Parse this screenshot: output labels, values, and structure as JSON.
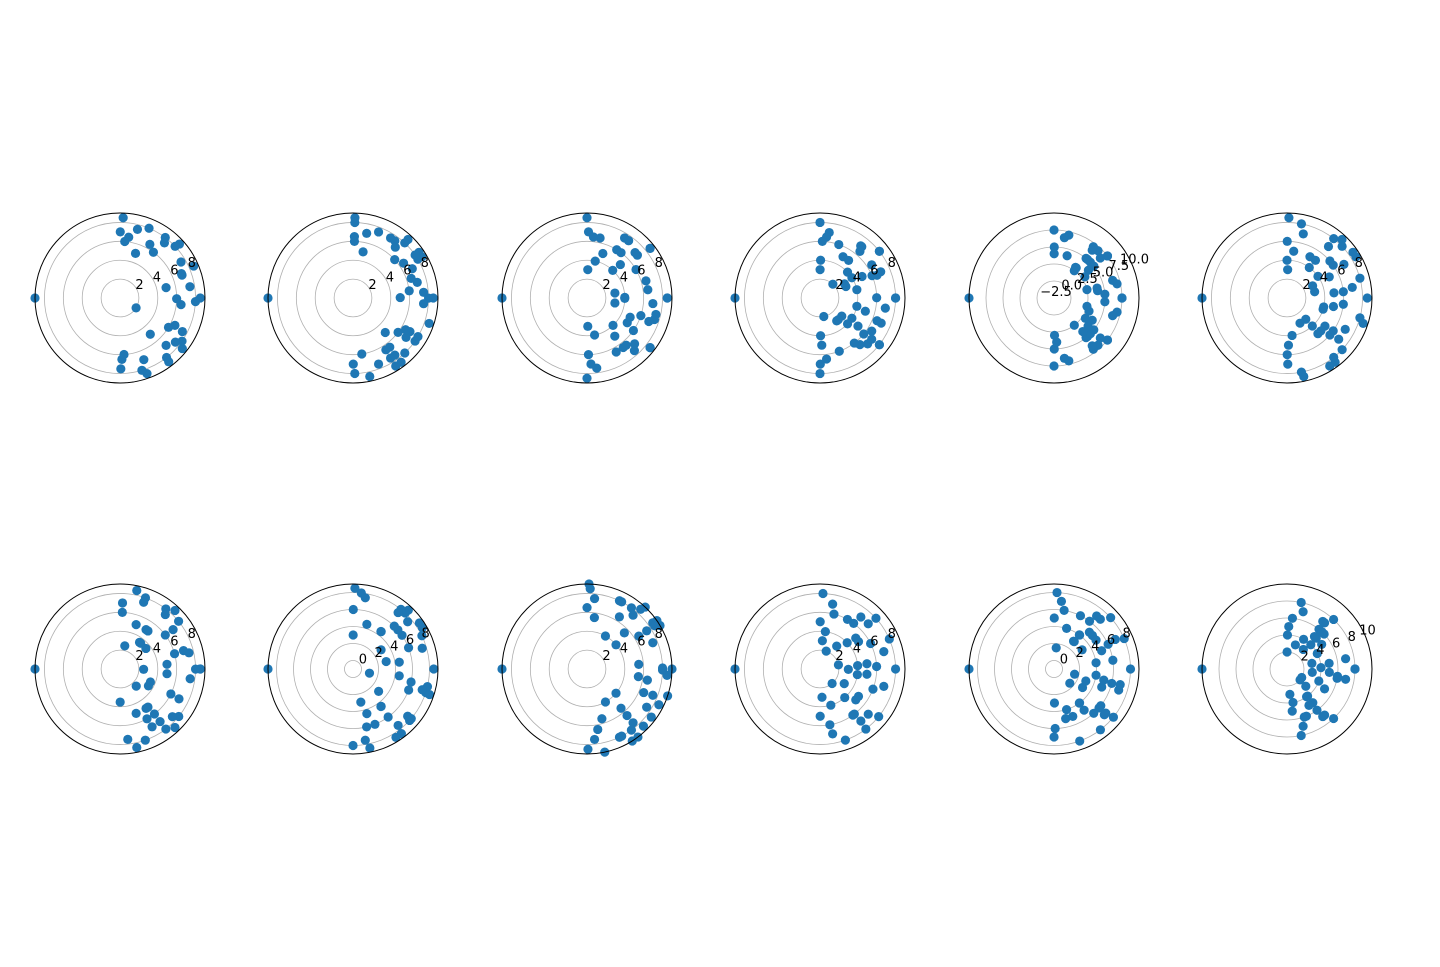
{
  "chart_data": [
    {
      "type": "scatter",
      "projection": "polar",
      "row": 0,
      "col": 0,
      "rmin": 0,
      "rmax": 9,
      "ring_ticks": [
        2,
        4,
        6,
        8
      ],
      "ring_labels": [
        "2",
        "4",
        "6",
        "8"
      ],
      "spiral": 0.5,
      "groups": [
        {
          "r": 8.5,
          "n": 7
        },
        {
          "r": 8,
          "n": 7
        },
        {
          "r": 7.5,
          "n": 7
        },
        {
          "r": 7,
          "n": 5
        },
        {
          "r": 6.5,
          "n": 5
        },
        {
          "r": 6,
          "n": 5
        },
        {
          "r": 5,
          "n": 3
        },
        {
          "r": 2,
          "n": 1
        }
      ],
      "marker_color": "#1f77b4",
      "grid_color": "#b0b0b0"
    },
    {
      "type": "scatter",
      "projection": "polar",
      "row": 0,
      "col": 1,
      "rmin": 0,
      "rmax": 9,
      "ring_ticks": [
        2,
        4,
        6,
        8
      ],
      "ring_labels": [
        "2",
        "4",
        "6",
        "8"
      ],
      "spiral": 0.35,
      "groups": [
        {
          "r": 8.5,
          "n": 9
        },
        {
          "r": 8,
          "n": 9
        },
        {
          "r": 7.5,
          "n": 8
        },
        {
          "r": 7,
          "n": 7
        },
        {
          "r": 6.5,
          "n": 6
        },
        {
          "r": 6,
          "n": 5
        },
        {
          "r": 5,
          "n": 3
        }
      ],
      "marker_color": "#1f77b4",
      "grid_color": "#b0b0b0"
    },
    {
      "type": "scatter",
      "projection": "polar",
      "row": 0,
      "col": 2,
      "rmin": 0,
      "rmax": 9,
      "ring_ticks": [
        2,
        4,
        6,
        8
      ],
      "ring_labels": [
        "2",
        "4",
        "6",
        "8"
      ],
      "spiral": 0.7,
      "groups": [
        {
          "r": 8.5,
          "n": 8
        },
        {
          "r": 7.5,
          "n": 7
        },
        {
          "r": 7,
          "n": 7
        },
        {
          "r": 6.5,
          "n": 7
        },
        {
          "r": 6,
          "n": 6
        },
        {
          "r": 5,
          "n": 5
        },
        {
          "r": 4,
          "n": 6
        },
        {
          "r": 3,
          "n": 4
        }
      ],
      "marker_color": "#1f77b4",
      "grid_color": "#b0b0b0"
    },
    {
      "type": "scatter",
      "projection": "polar",
      "row": 0,
      "col": 3,
      "rmin": 0,
      "rmax": 9,
      "ring_ticks": [
        2,
        4,
        6,
        8
      ],
      "ring_labels": [
        "2",
        "4",
        "6",
        "8"
      ],
      "spiral": 0.6,
      "groups": [
        {
          "r": 8,
          "n": 8
        },
        {
          "r": 7,
          "n": 9
        },
        {
          "r": 6.5,
          "n": 8
        },
        {
          "r": 6,
          "n": 7
        },
        {
          "r": 5,
          "n": 6
        },
        {
          "r": 4,
          "n": 8
        },
        {
          "r": 3,
          "n": 6
        },
        {
          "r": 2,
          "n": 2
        }
      ],
      "marker_color": "#1f77b4",
      "grid_color": "#b0b0b0"
    },
    {
      "type": "scatter",
      "projection": "polar",
      "row": 0,
      "col": 4,
      "rmin": -2.5,
      "rmax": 10,
      "ring_ticks": [
        -2.5,
        0,
        2.5,
        5,
        7.5,
        10
      ],
      "ring_labels": [
        "−2.5",
        "0.0",
        "2.5",
        "5.0",
        "7.5",
        "10.0"
      ],
      "spiral": 0.55,
      "groups": [
        {
          "r": 7.5,
          "n": 8
        },
        {
          "r": 7,
          "n": 8
        },
        {
          "r": 6.5,
          "n": 8
        },
        {
          "r": 5,
          "n": 12
        },
        {
          "r": 4,
          "n": 9
        },
        {
          "r": 3,
          "n": 6
        },
        {
          "r": 2.5,
          "n": 4
        }
      ],
      "marker_color": "#1f77b4",
      "grid_color": "#b0b0b0"
    },
    {
      "type": "scatter",
      "projection": "polar",
      "row": 0,
      "col": 5,
      "rmin": 0,
      "rmax": 9,
      "ring_ticks": [
        2,
        4,
        6,
        8
      ],
      "ring_labels": [
        "2",
        "4",
        "6",
        "8"
      ],
      "spiral": 0.5,
      "groups": [
        {
          "r": 8.5,
          "n": 9
        },
        {
          "r": 8,
          "n": 8
        },
        {
          "r": 7,
          "n": 7
        },
        {
          "r": 6,
          "n": 8
        },
        {
          "r": 5,
          "n": 10
        },
        {
          "r": 4,
          "n": 7
        },
        {
          "r": 3,
          "n": 5
        }
      ],
      "marker_color": "#1f77b4",
      "grid_color": "#b0b0b0"
    },
    {
      "type": "scatter",
      "projection": "polar",
      "row": 1,
      "col": 0,
      "rmin": 0,
      "rmax": 9,
      "ring_ticks": [
        2,
        4,
        6,
        8
      ],
      "ring_labels": [
        "2",
        "4",
        "6",
        "8"
      ],
      "spiral": 0.45,
      "groups": [
        {
          "r": 8.5,
          "n": 6
        },
        {
          "r": 8,
          "n": 7
        },
        {
          "r": 7.5,
          "n": 6
        },
        {
          "r": 7,
          "n": 6
        },
        {
          "r": 6,
          "n": 6
        },
        {
          "r": 5,
          "n": 8
        },
        {
          "r": 3.5,
          "n": 6
        },
        {
          "r": 2.5,
          "n": 3
        }
      ],
      "marker_color": "#1f77b4",
      "grid_color": "#b0b0b0"
    },
    {
      "type": "scatter",
      "projection": "polar",
      "row": 1,
      "col": 1,
      "rmin": -1,
      "rmax": 9,
      "ring_ticks": [
        0,
        2,
        4,
        6,
        8
      ],
      "ring_labels": [
        "0",
        "2",
        "4",
        "6",
        "8"
      ],
      "spiral": 0.55,
      "groups": [
        {
          "r": 8.5,
          "n": 9
        },
        {
          "r": 8,
          "n": 9
        },
        {
          "r": 7.5,
          "n": 8
        },
        {
          "r": 6,
          "n": 10
        },
        {
          "r": 4.5,
          "n": 8
        },
        {
          "r": 3,
          "n": 5
        },
        {
          "r": 1,
          "n": 1
        }
      ],
      "marker_color": "#1f77b4",
      "grid_color": "#b0b0b0"
    },
    {
      "type": "scatter",
      "projection": "polar",
      "row": 1,
      "col": 2,
      "rmin": 0,
      "rmax": 9,
      "ring_ticks": [
        2,
        4,
        6,
        8
      ],
      "ring_labels": [
        "2",
        "4",
        "6",
        "8"
      ],
      "spiral": 0.4,
      "groups": [
        {
          "r": 9,
          "n": 9
        },
        {
          "r": 8.5,
          "n": 9
        },
        {
          "r": 8,
          "n": 8
        },
        {
          "r": 7.5,
          "n": 8
        },
        {
          "r": 6.5,
          "n": 7
        },
        {
          "r": 5.5,
          "n": 6
        },
        {
          "r": 4,
          "n": 4
        }
      ],
      "marker_color": "#1f77b4",
      "grid_color": "#b0b0b0"
    },
    {
      "type": "scatter",
      "projection": "polar",
      "row": 1,
      "col": 3,
      "rmin": 0,
      "rmax": 9,
      "ring_ticks": [
        2,
        4,
        6,
        8
      ],
      "ring_labels": [
        "2",
        "4",
        "6",
        "8"
      ],
      "spiral": 0.5,
      "groups": [
        {
          "r": 8,
          "n": 7
        },
        {
          "r": 7,
          "n": 8
        },
        {
          "r": 6,
          "n": 9
        },
        {
          "r": 5,
          "n": 8
        },
        {
          "r": 4,
          "n": 6
        },
        {
          "r": 3,
          "n": 5
        },
        {
          "r": 2,
          "n": 3
        }
      ],
      "marker_color": "#1f77b4",
      "grid_color": "#b0b0b0"
    },
    {
      "type": "scatter",
      "projection": "polar",
      "row": 1,
      "col": 4,
      "rmin": -1,
      "rmax": 9,
      "ring_ticks": [
        0,
        2,
        4,
        6,
        8
      ],
      "ring_labels": [
        "0",
        "2",
        "4",
        "6",
        "8"
      ],
      "spiral": 0.55,
      "groups": [
        {
          "r": 8,
          "n": 7
        },
        {
          "r": 7,
          "n": 9
        },
        {
          "r": 6,
          "n": 10
        },
        {
          "r": 5,
          "n": 10
        },
        {
          "r": 4,
          "n": 8
        },
        {
          "r": 3,
          "n": 6
        },
        {
          "r": 1.5,
          "n": 3
        }
      ],
      "marker_color": "#1f77b4",
      "grid_color": "#b0b0b0"
    },
    {
      "type": "scatter",
      "projection": "polar",
      "row": 1,
      "col": 5,
      "rmin": 0,
      "rmax": 10,
      "ring_ticks": [
        2,
        4,
        6,
        8,
        10
      ],
      "ring_labels": [
        "2",
        "4",
        "6",
        "8",
        "10"
      ],
      "spiral": 0.6,
      "groups": [
        {
          "r": 8,
          "n": 6
        },
        {
          "r": 7,
          "n": 8
        },
        {
          "r": 6,
          "n": 9
        },
        {
          "r": 5,
          "n": 10
        },
        {
          "r": 4,
          "n": 9
        },
        {
          "r": 3,
          "n": 6
        },
        {
          "r": 2,
          "n": 3
        }
      ],
      "marker_color": "#1f77b4",
      "grid_color": "#b0b0b0"
    }
  ]
}
